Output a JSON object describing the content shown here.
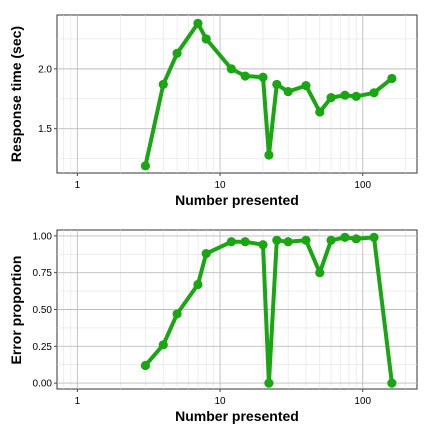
{
  "colors": {
    "series": "#1aa512"
  },
  "chart_data": [
    {
      "type": "line",
      "xlabel": "Number presented",
      "ylabel": "Response time (sec)",
      "x_scale": "log",
      "xlim": [
        0.72,
        240
      ],
      "ylim": [
        1.13,
        2.45
      ],
      "x_ticks": [
        1,
        10,
        100
      ],
      "x_tick_labels": [
        "1",
        "10",
        "100"
      ],
      "y_ticks": [
        1.5,
        2.0
      ],
      "y_tick_labels": [
        "1.5",
        "2.0"
      ],
      "grid": true,
      "x": [
        3,
        4,
        5,
        7,
        8,
        12,
        15,
        20,
        22,
        25,
        30,
        40,
        50,
        60,
        75,
        90,
        120,
        160
      ],
      "y": [
        1.19,
        1.87,
        2.13,
        2.38,
        2.25,
        2.0,
        1.94,
        1.93,
        1.28,
        1.87,
        1.81,
        1.86,
        1.64,
        1.76,
        1.78,
        1.77,
        1.8,
        1.92
      ]
    },
    {
      "type": "line",
      "xlabel": "Number presented",
      "ylabel": "Error proportion",
      "x_scale": "log",
      "xlim": [
        0.72,
        240
      ],
      "ylim": [
        -0.04,
        1.04
      ],
      "x_ticks": [
        1,
        10,
        100
      ],
      "x_tick_labels": [
        "1",
        "10",
        "100"
      ],
      "y_ticks": [
        0.0,
        0.25,
        0.5,
        0.75,
        1.0
      ],
      "y_tick_labels": [
        "0.00",
        "0.25",
        "0.50",
        "0.75",
        "1.00"
      ],
      "grid": true,
      "x": [
        3,
        4,
        5,
        7,
        8,
        12,
        15,
        20,
        22,
        25,
        30,
        40,
        50,
        60,
        75,
        90,
        120,
        160
      ],
      "y": [
        0.12,
        0.26,
        0.47,
        0.67,
        0.88,
        0.96,
        0.96,
        0.94,
        0.0,
        0.97,
        0.96,
        0.97,
        0.75,
        0.97,
        0.99,
        0.98,
        0.99,
        0.0
      ]
    }
  ]
}
